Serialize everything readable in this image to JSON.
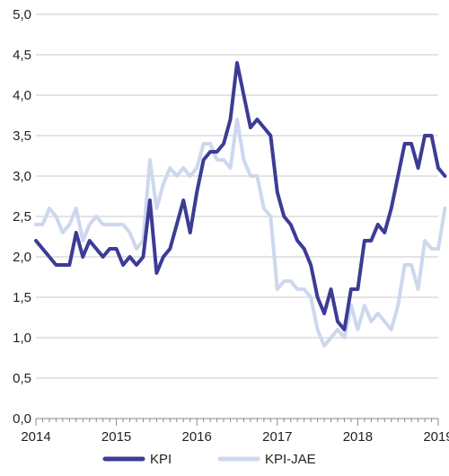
{
  "chart_data": {
    "type": "line",
    "title": "",
    "xlabel": "",
    "ylabel": "",
    "ylim": [
      0,
      5
    ],
    "y_ticks": [
      "0,0",
      "0,5",
      "1,0",
      "1,5",
      "2,0",
      "2,5",
      "3,0",
      "3,5",
      "4,0",
      "4,5",
      "5,0"
    ],
    "x_ticks": [
      "2014",
      "2015",
      "2016",
      "2017",
      "2018",
      "2019"
    ],
    "grid": "horizontal",
    "legend": "bottom",
    "x_start": "2014-01",
    "series": [
      {
        "name": "KPI",
        "color": "#3c3c96",
        "values": [
          2.2,
          2.1,
          2.0,
          1.9,
          1.9,
          1.9,
          2.3,
          2.0,
          2.2,
          2.1,
          2.0,
          2.1,
          2.1,
          1.9,
          2.0,
          1.9,
          2.0,
          2.7,
          1.8,
          2.0,
          2.1,
          2.4,
          2.7,
          2.3,
          2.8,
          3.2,
          3.3,
          3.3,
          3.4,
          3.7,
          4.4,
          4.0,
          3.6,
          3.7,
          3.6,
          3.5,
          2.8,
          2.5,
          2.4,
          2.2,
          2.1,
          1.9,
          1.5,
          1.3,
          1.6,
          1.2,
          1.1,
          1.6,
          1.6,
          2.2,
          2.2,
          2.4,
          2.3,
          2.6,
          3.0,
          3.4,
          3.4,
          3.1,
          3.5,
          3.5,
          3.1,
          3.0
        ]
      },
      {
        "name": "KPI-JAE",
        "color": "#cdd8ee",
        "values": [
          2.4,
          2.4,
          2.6,
          2.5,
          2.3,
          2.4,
          2.6,
          2.2,
          2.4,
          2.5,
          2.4,
          2.4,
          2.4,
          2.4,
          2.3,
          2.1,
          2.2,
          3.2,
          2.6,
          2.9,
          3.1,
          3.0,
          3.1,
          3.0,
          3.1,
          3.4,
          3.4,
          3.2,
          3.2,
          3.1,
          3.7,
          3.2,
          3.0,
          3.0,
          2.6,
          2.5,
          1.6,
          1.7,
          1.7,
          1.6,
          1.6,
          1.5,
          1.1,
          0.9,
          1.0,
          1.1,
          1.0,
          1.4,
          1.1,
          1.4,
          1.2,
          1.3,
          1.2,
          1.1,
          1.4,
          1.9,
          1.9,
          1.6,
          2.2,
          2.1,
          2.1,
          2.6
        ]
      }
    ]
  }
}
